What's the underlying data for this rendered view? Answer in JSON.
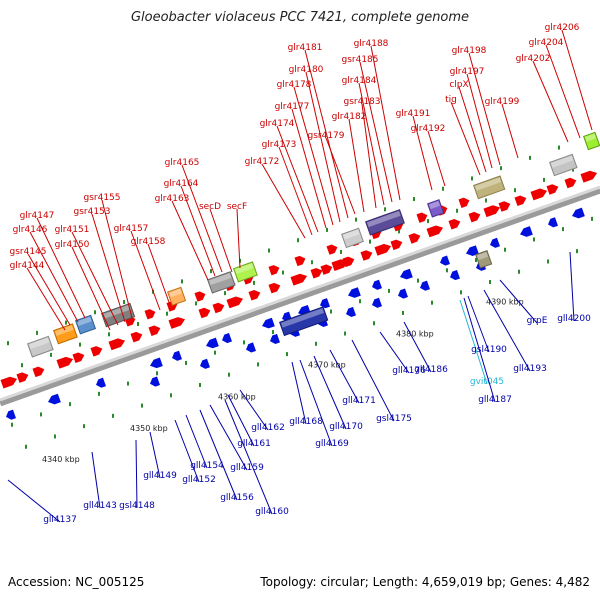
{
  "title": "Gloeobacter violaceus PCC 7421, complete genome",
  "footer": {
    "accession": "Accession: NC_005125",
    "summary": "Topology: circular; Length: 4,659,019 bp; Genes: 4,482"
  },
  "colors": {
    "forward_label": "#cc0000",
    "reverse_label": "#0000aa",
    "highlight_label": "#29b6d6",
    "forward_gene": "#ee0000",
    "reverse_gene": "#0011dd"
  },
  "scale_ticks": [
    {
      "label": "4340 kbp",
      "pos": 4340
    },
    {
      "label": "4350 kbp",
      "pos": 4350
    },
    {
      "label": "4360 kbp",
      "pos": 4360
    },
    {
      "label": "4370 kbp",
      "pos": 4370
    },
    {
      "label": "4380 kbp",
      "pos": 4380
    },
    {
      "label": "4390 kbp",
      "pos": 4390
    }
  ],
  "forward_genes": [
    "glr4144",
    "gsr4145",
    "glr4146",
    "glr4147",
    "glr4150",
    "glr4151",
    "gsr4153",
    "gsr4155",
    "glr4157",
    "glr4158",
    "glr4163",
    "glr4164",
    "glr4165",
    "secD",
    "secF",
    "glr4172",
    "glr4173",
    "glr4174",
    "glr4177",
    "glr4178",
    "glr4180",
    "glr4181",
    "gsr4179",
    "glr4182",
    "gsr4183",
    "glr4184",
    "gsr4185",
    "glr4188",
    "glr4191",
    "glr4192",
    "tig",
    "clpX",
    "glr4197",
    "glr4198",
    "glr4199",
    "glr4202",
    "glr4204",
    "glr4206"
  ],
  "reverse_genes": [
    "gll4137",
    "gll4143",
    "gsl4148",
    "gll4149",
    "gll4152",
    "gll4154",
    "gll4156",
    "gll4159",
    "gll4160",
    "gll4161",
    "gll4162",
    "gll4168",
    "gll4169",
    "gll4170",
    "gll4171",
    "gsl4175",
    "gll4176",
    "gll4186",
    "gvit045",
    "gll4187",
    "gsl4190",
    "gll4193",
    "grpE",
    "gll4200"
  ]
}
